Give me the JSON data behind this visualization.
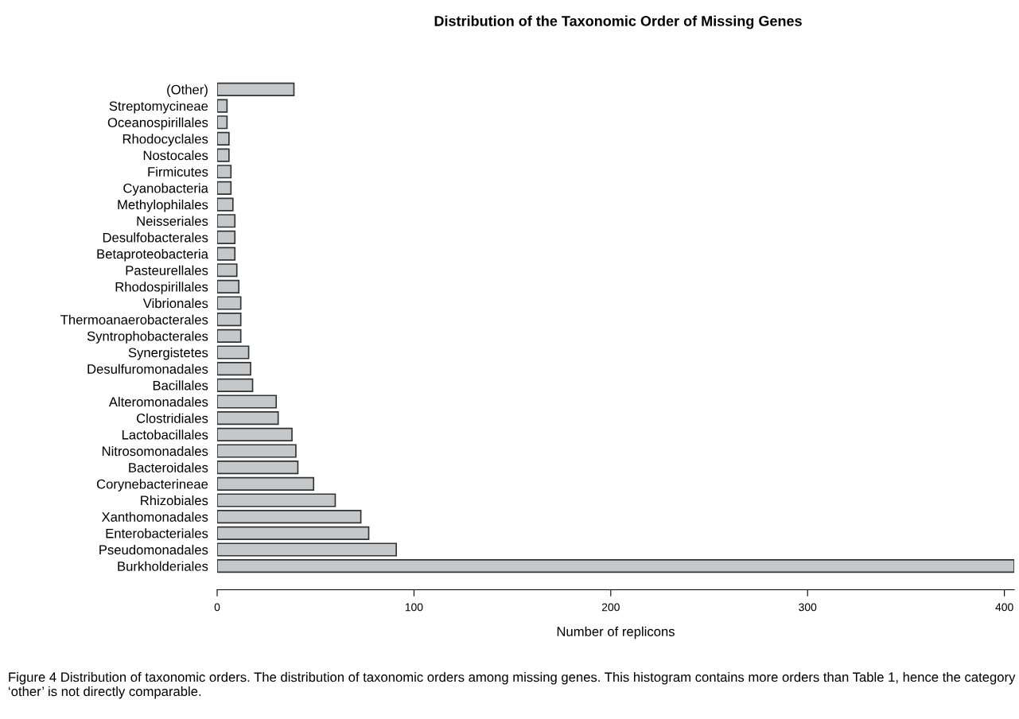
{
  "chart_data": {
    "type": "bar",
    "orientation": "horizontal",
    "title": "Distribution of the Taxonomic Order of Missing Genes",
    "xlabel": "Number of replicons",
    "categories": [
      "(Other)",
      "Streptomycineae",
      "Oceanospirillales",
      "Rhodocyclales",
      "Nostocales",
      "Firmicutes",
      "Cyanobacteria",
      "Methylophilales",
      "Neisseriales",
      "Desulfobacterales",
      "Betaproteobacteria",
      "Pasteurellales",
      "Rhodospirillales",
      "Vibrionales",
      "Thermoanaerobacterales",
      "Syntrophobacterales",
      "Synergistetes",
      "Desulfuromonadales",
      "Bacillales",
      "Alteromonadales",
      "Clostridiales",
      "Lactobacillales",
      "Nitrosomonadales",
      "Bacteroidales",
      "Corynebacterineae",
      "Rhizobiales",
      "Xanthomonadales",
      "Enterobacteriales",
      "Pseudomonadales",
      "Burkholderiales"
    ],
    "values": [
      39,
      5,
      5,
      6,
      6,
      7,
      7,
      8,
      9,
      9,
      9,
      10,
      11,
      12,
      12,
      12,
      16,
      17,
      18,
      30,
      31,
      38,
      40,
      41,
      49,
      60,
      73,
      77,
      91,
      405
    ],
    "color": "#c6c7c9",
    "xlim": [
      0,
      405
    ],
    "xticks": [
      0,
      100,
      200,
      300,
      400
    ],
    "grid": false,
    "annotations": [
      "Figure 4 Distribution of taxonomic orders. The distribution of taxonomic orders among missing genes. This histogram contains more orders than Table 1, hence the category ‘other’ is not directly comparable."
    ]
  }
}
